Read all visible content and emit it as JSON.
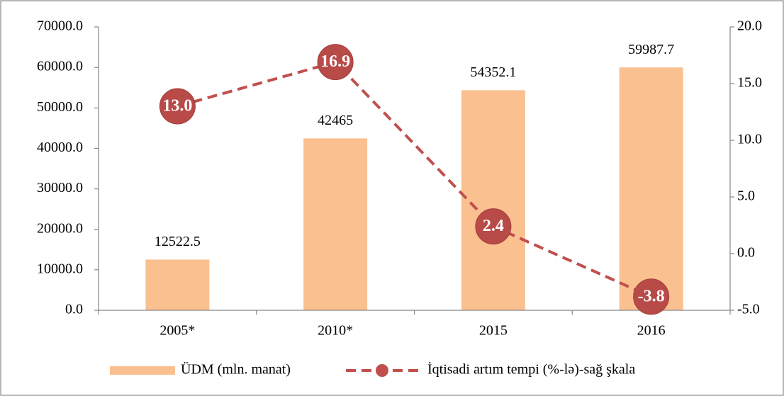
{
  "chart_data": {
    "type": "bar-line",
    "categories": [
      "2005*",
      "2010*",
      "2015",
      "2016"
    ],
    "series": [
      {
        "name": "ÜDM (mln. manat)",
        "color": "#fac090",
        "values": [
          12522.5,
          42465.0,
          54352.1,
          59987.7
        ]
      },
      {
        "name": "İqtisadi artım tempi (%-lə)-sağ şkala",
        "color": "#c0504d",
        "axis": "y2",
        "values": [
          13.0,
          16.9,
          2.4,
          -3.8
        ],
        "value_labels": [
          "13.0",
          "16.9",
          "2.4",
          "-3.8"
        ]
      }
    ],
    "ylim": [
      0,
      70000
    ],
    "yticks": [
      {
        "value": 0,
        "label": "0.0"
      },
      {
        "value": 10000,
        "label": "10000.0"
      },
      {
        "value": 20000,
        "label": "20000.0"
      },
      {
        "value": 30000,
        "label": "30000.0"
      },
      {
        "value": 40000,
        "label": "40000.0"
      },
      {
        "value": 50000,
        "label": "50000.0"
      },
      {
        "value": 60000,
        "label": "60000.0"
      },
      {
        "value": 70000,
        "label": "70000.0"
      }
    ],
    "y2lim": [
      -5,
      20
    ],
    "y2ticks": [
      {
        "value": -5,
        "label": "-5.0"
      },
      {
        "value": 0,
        "label": "0.0"
      },
      {
        "value": 5,
        "label": "5.0"
      },
      {
        "value": 10,
        "label": "10.0"
      },
      {
        "value": 15,
        "label": "15.0"
      },
      {
        "value": 20,
        "label": "20.0"
      }
    ]
  }
}
